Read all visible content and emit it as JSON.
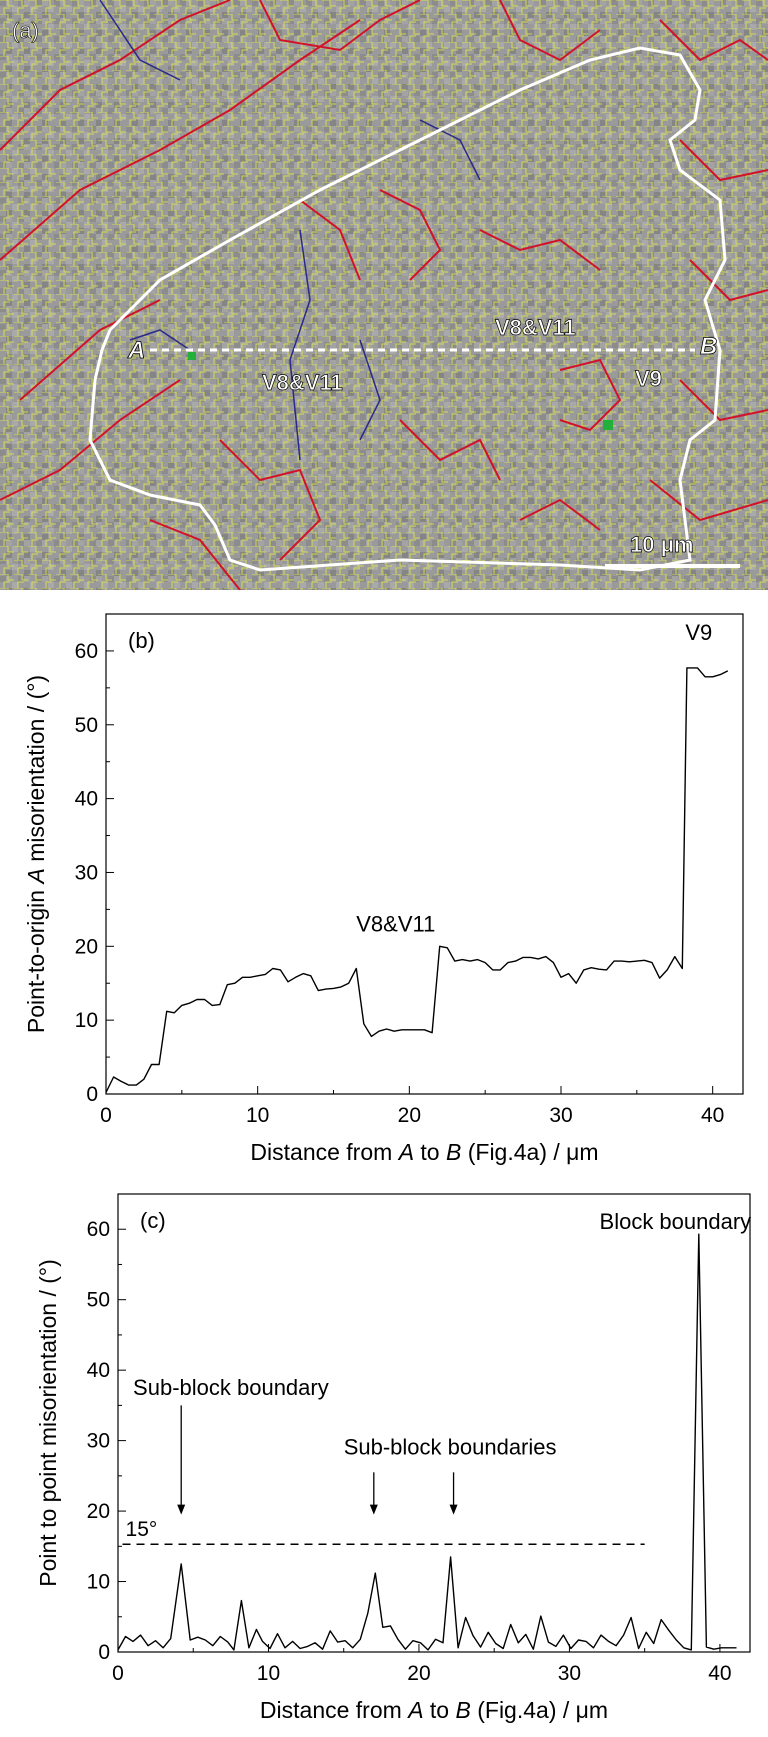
{
  "panel_a": {
    "label": "(a)",
    "point_a": "A",
    "point_b": "B",
    "variant_left": "V8&V11",
    "variant_top": "V8&V11",
    "variant_right": "V9",
    "scale_bar": "10 μm",
    "colors": {
      "background": "#9a9a9a",
      "sub_boundary": "#e8ee3c",
      "high_angle_boundary": "#d2122a",
      "mid_angle_boundary": "#2a2a8a",
      "grain_outline": "#ffffff",
      "marker": "#22b03a"
    }
  },
  "chart_data": [
    {
      "type": "line",
      "panel_label": "(b)",
      "xlabel_prefix": "Distance from ",
      "xlabel_a": "A",
      "xlabel_mid": " to ",
      "xlabel_b": "B",
      "xlabel_suffix": " (Fig.4a) / μm",
      "ylabel_prefix": "Point-to-origin ",
      "ylabel_a": "A",
      "ylabel_suffix": " misorientation / (°)",
      "xlim": [
        0,
        42
      ],
      "ylim": [
        0,
        65
      ],
      "x_ticks": [
        0,
        10,
        20,
        30,
        40
      ],
      "y_ticks": [
        0,
        10,
        20,
        30,
        40,
        50,
        60
      ],
      "annotations": [
        {
          "text": "V8&V11",
          "x": 16.5,
          "y": 22
        },
        {
          "text": "V9",
          "x": 38.2,
          "y": 61.5
        }
      ],
      "series": [
        {
          "x": [
            0,
            0.5,
            1,
            1.5,
            2,
            2.5,
            3,
            3.5,
            4,
            4.5,
            5,
            5.5,
            6,
            6.5,
            7,
            7.5,
            8,
            8.5,
            9,
            9.5,
            10,
            10.5,
            11,
            11.5,
            12,
            12.5,
            13,
            13.5,
            14,
            14.5,
            15,
            15.5,
            16,
            16.5,
            17,
            17.5,
            18,
            18.5,
            19,
            19.5,
            20,
            20.5,
            21,
            21.5,
            22,
            22.5,
            23,
            23.5,
            24,
            24.5,
            25,
            25.5,
            26,
            26.5,
            27,
            27.5,
            28,
            28.5,
            29,
            29.5,
            30,
            30.5,
            31,
            31.5,
            32,
            32.5,
            33,
            33.5,
            34,
            34.5,
            35,
            35.5,
            36,
            36.5,
            37,
            37.5,
            38,
            38.3,
            38.5,
            39,
            39.5,
            40,
            40.5,
            41
          ],
          "y": [
            0.2,
            2.3,
            1.7,
            1.2,
            1.2,
            2,
            4,
            4,
            11.2,
            11,
            12,
            12.3,
            12.8,
            12.8,
            12,
            12.1,
            14.8,
            15,
            15.8,
            15.8,
            16,
            16.2,
            17,
            16.8,
            15.2,
            15.8,
            16.3,
            16,
            14,
            14.2,
            14.3,
            14.5,
            15,
            17,
            9.5,
            7.8,
            8.5,
            8.8,
            8.5,
            8.7,
            8.7,
            8.7,
            8.7,
            8.3,
            20,
            19.8,
            18,
            18.2,
            18,
            18.2,
            17.8,
            16.8,
            16.8,
            17.8,
            18,
            18.5,
            18.5,
            18.3,
            18.6,
            17.8,
            15.8,
            16.3,
            15,
            16.8,
            17.1,
            16.9,
            16.8,
            18,
            18,
            17.9,
            18,
            18.1,
            17.8,
            15.7,
            16.8,
            18.6,
            17,
            57.7,
            57.7,
            57.7,
            56.5,
            56.5,
            56.8,
            57.3
          ]
        }
      ]
    },
    {
      "type": "line",
      "panel_label": "(c)",
      "xlabel_prefix": "Distance from ",
      "xlabel_a": "A",
      "xlabel_mid": " to ",
      "xlabel_b": "B",
      "xlabel_suffix": " (Fig.4a) / μm",
      "ylabel": "Point to point misorientation / (°)",
      "xlim": [
        0,
        42
      ],
      "ylim": [
        0,
        65
      ],
      "x_ticks": [
        0,
        10,
        20,
        30,
        40
      ],
      "y_ticks": [
        0,
        10,
        20,
        30,
        40,
        50,
        60
      ],
      "threshold": {
        "value": 15.3,
        "x_end": 35,
        "label": "15°"
      },
      "annotations": [
        {
          "text": "Block boundary",
          "x": 32,
          "y": 60
        },
        {
          "text": "Sub-block boundary",
          "x": 1,
          "y": 36.5
        },
        {
          "text": "Sub-block boundaries",
          "x": 15,
          "y": 28
        }
      ],
      "arrows": [
        {
          "x": 4.2,
          "y_from": 35,
          "y_to": 19.5
        },
        {
          "x": 17,
          "y_from": 25.5,
          "y_to": 19.5
        },
        {
          "x": 22.3,
          "y_from": 25.5,
          "y_to": 19.5
        }
      ],
      "series": [
        {
          "x": [
            0,
            0.5,
            1,
            1.5,
            2,
            2.5,
            3,
            3.5,
            4.2,
            4.8,
            5.3,
            5.8,
            6.3,
            6.8,
            7.3,
            7.7,
            8.2,
            8.7,
            9.2,
            9.6,
            10.1,
            10.6,
            11.1,
            11.6,
            12.1,
            12.6,
            13.1,
            13.6,
            14.1,
            14.6,
            15.1,
            15.6,
            16.1,
            16.6,
            17.1,
            17.6,
            18.1,
            18.6,
            19.1,
            19.6,
            20.1,
            20.6,
            21.1,
            21.6,
            22.1,
            22.6,
            23.1,
            23.6,
            24.1,
            24.6,
            25.1,
            25.6,
            26.1,
            26.6,
            27.1,
            27.6,
            28.1,
            28.6,
            29.1,
            29.6,
            30.1,
            30.6,
            31.1,
            31.6,
            32.1,
            32.6,
            33.1,
            33.6,
            34.1,
            34.6,
            35.1,
            35.6,
            36.1,
            36.6,
            37.1,
            37.6,
            38.1,
            38.6,
            39.1,
            39.6,
            40.1,
            40.6,
            41.1
          ],
          "y": [
            0.3,
            2.2,
            1.5,
            2.4,
            0.9,
            1.6,
            0.6,
            1.9,
            12.5,
            1.7,
            2.1,
            1.7,
            0.9,
            2.2,
            1.4,
            0.3,
            7.3,
            0.6,
            3.2,
            1.5,
            0.5,
            2.6,
            0.6,
            1.5,
            0.5,
            0.8,
            1.3,
            0.4,
            3,
            1.4,
            1.6,
            0.6,
            1.8,
            5.5,
            11.2,
            3.5,
            3.7,
            1.8,
            0.4,
            1.6,
            1.3,
            0.3,
            1.8,
            1.3,
            13.5,
            0.6,
            4.9,
            2.3,
            0.7,
            2.8,
            1.2,
            0.5,
            3.9,
            1.3,
            2.5,
            0.4,
            5.1,
            1.4,
            0.8,
            2.4,
            0.5,
            1.7,
            1.5,
            0.6,
            2.4,
            1.5,
            0.9,
            2.4,
            4.9,
            0.5,
            2.8,
            1.2,
            4.6,
            3.1,
            1.7,
            0.6,
            0.3,
            59.3,
            0.7,
            0.4,
            0.6,
            0.6,
            0.6
          ]
        }
      ]
    }
  ]
}
